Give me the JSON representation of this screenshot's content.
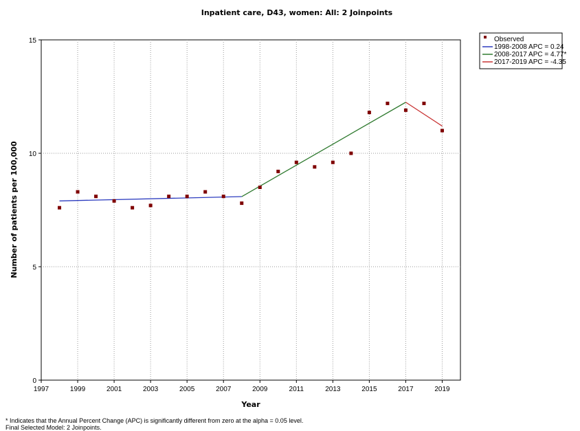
{
  "chart_data": {
    "type": "line",
    "title": "Inpatient care, D43, women: All: 2 Joinpoints",
    "xlabel": "Year",
    "ylabel": "Number of patients per 100,000",
    "xlim": [
      1997,
      2020
    ],
    "ylim": [
      0,
      15
    ],
    "x_ticks": [
      "1997",
      "1999",
      "2001",
      "2003",
      "2005",
      "2007",
      "2009",
      "2011",
      "2013",
      "2015",
      "2017",
      "2019"
    ],
    "y_ticks": [
      "0",
      "5",
      "10",
      "15"
    ],
    "grid": "dotted",
    "legend_position": "top-right-outside",
    "observed": {
      "name": "Observed",
      "color": "#7f0000",
      "x": [
        1998,
        1999,
        2000,
        2001,
        2002,
        2003,
        2004,
        2005,
        2006,
        2007,
        2008,
        2009,
        2010,
        2011,
        2012,
        2013,
        2014,
        2015,
        2016,
        2017,
        2018,
        2019
      ],
      "y": [
        7.6,
        8.3,
        8.1,
        7.9,
        7.6,
        7.7,
        8.1,
        8.1,
        8.3,
        8.1,
        7.8,
        8.5,
        9.2,
        9.6,
        9.4,
        9.6,
        10.0,
        11.8,
        12.2,
        11.9,
        12.2,
        11.0
      ]
    },
    "series": [
      {
        "name": "1998-2008 APC =  0.24",
        "color": "#2b3bbf",
        "x": [
          1998,
          2008
        ],
        "y": [
          7.9,
          8.09
        ]
      },
      {
        "name": "2008-2017 APC =  4.77*",
        "color": "#2f7a2f",
        "x": [
          2008,
          2017
        ],
        "y": [
          8.09,
          12.25
        ]
      },
      {
        "name": "2017-2019 APC = -4.35",
        "color": "#c83232",
        "x": [
          2017,
          2019
        ],
        "y": [
          12.25,
          11.2
        ]
      }
    ]
  },
  "footnotes": {
    "line1": "* Indicates that the Annual Percent Change (APC) is significantly different from zero at the alpha = 0.05 level.",
    "line2": "Final Selected Model: 2 Joinpoints."
  }
}
